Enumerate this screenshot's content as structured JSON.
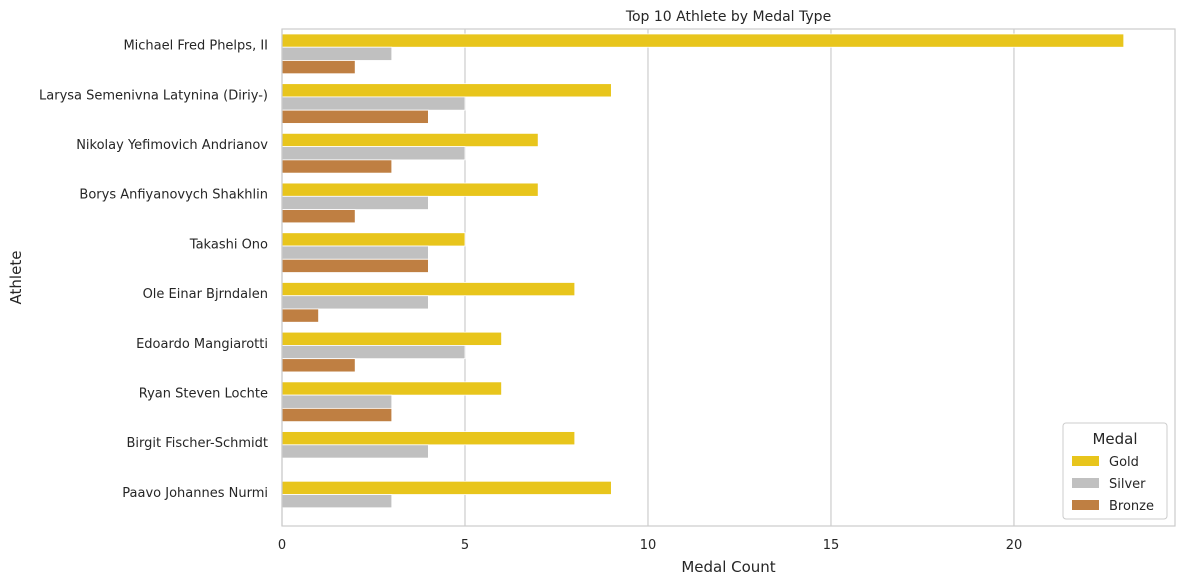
{
  "chart_data": {
    "type": "bar",
    "orientation": "horizontal",
    "title": "Top 10 Athlete by Medal Type",
    "xlabel": "Medal Count",
    "ylabel": "Athlete",
    "xlim": [
      0,
      24.4
    ],
    "xticks": [
      0,
      5,
      10,
      15,
      20
    ],
    "grid": true,
    "legend_title": "Medal",
    "legend_position": "bottom-right",
    "categories": [
      "Michael Fred Phelps, II",
      "Larysa Semenivna Latynina (Diriy-)",
      "Nikolay Yefimovich Andrianov",
      "Borys Anfiyanovych Shakhlin",
      "Takashi Ono",
      "Ole Einar Bjrndalen",
      "Edoardo Mangiarotti",
      "Ryan Steven Lochte",
      "Birgit Fischer-Schmidt",
      "Paavo Johannes Nurmi"
    ],
    "series": [
      {
        "name": "Gold",
        "color": "#e8c51c",
        "values": [
          23,
          9,
          7,
          7,
          5,
          8,
          6,
          6,
          8,
          9
        ]
      },
      {
        "name": "Silver",
        "color": "#c0c0c0",
        "values": [
          3,
          5,
          5,
          4,
          4,
          4,
          5,
          3,
          4,
          3
        ]
      },
      {
        "name": "Bronze",
        "color": "#bf7f42",
        "values": [
          2,
          4,
          3,
          2,
          4,
          1,
          2,
          3,
          0,
          0
        ]
      }
    ]
  }
}
